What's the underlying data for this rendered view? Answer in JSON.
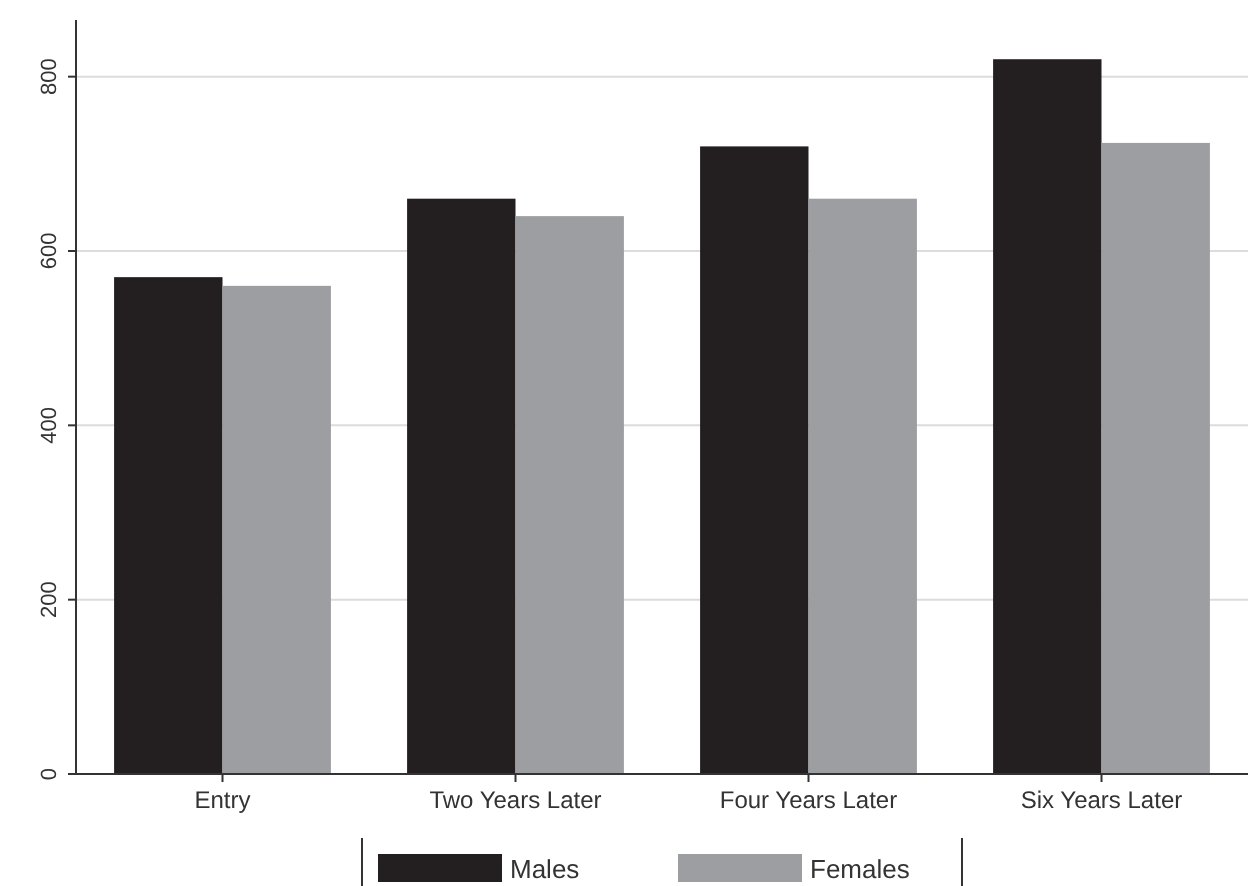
{
  "chart_data": {
    "type": "bar",
    "categories": [
      "Entry",
      "Two Years Later",
      "Four Years Later",
      "Six Years Later"
    ],
    "series": [
      {
        "name": "Males",
        "color": "#231f20",
        "values": [
          570,
          660,
          720,
          820
        ]
      },
      {
        "name": "Females",
        "color": "#9d9ea1",
        "values": [
          560,
          640,
          660,
          724
        ]
      }
    ],
    "ylim": [
      0,
      865
    ],
    "yticks": [
      0,
      200,
      400,
      600,
      800
    ],
    "grid": "y",
    "legend": "bottom"
  }
}
